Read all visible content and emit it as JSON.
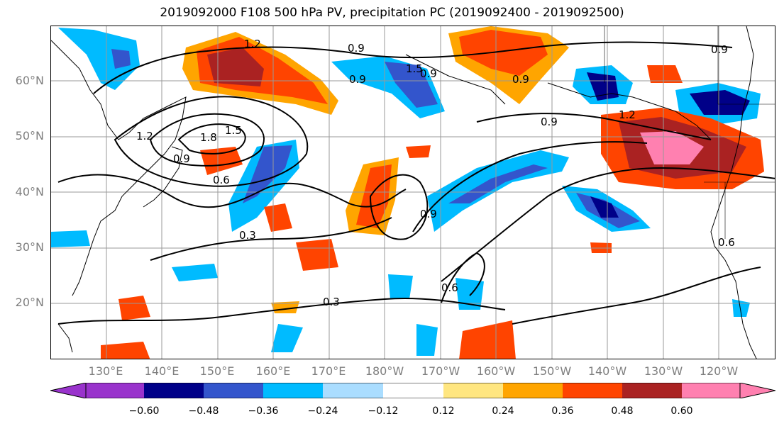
{
  "title": "2019092000 F108 500 hPa PV, precipitation PC (2019092400 - 2019092500)",
  "lat_labels": [
    "60°N",
    "50°N",
    "40°N",
    "30°N",
    "20°N"
  ],
  "lon_labels": [
    "130°E",
    "140°E",
    "150°E",
    "160°E",
    "170°E",
    "180°W",
    "170°W",
    "160°W",
    "150°W",
    "140°W",
    "130°W",
    "120°W"
  ],
  "colorbar": {
    "tick_labels": [
      "−0.60",
      "−0.48",
      "−0.36",
      "−0.24",
      "−0.12",
      "0.12",
      "0.24",
      "0.36",
      "0.48",
      "0.60"
    ],
    "colors": [
      "#9933cc",
      "#000088",
      "#3355cc",
      "#00bbff",
      "#aaddff",
      "#ffffff",
      "#ffe680",
      "#ffa500",
      "#ff4400",
      "#aa2222",
      "#ff80b0",
      "#ff80b0"
    ]
  },
  "contour_labels": [
    "1.2",
    "0.9",
    "0.9",
    "1.5",
    "0.9",
    "0.9",
    "1.2",
    "1.5",
    "1.8",
    "0.9",
    "0.6",
    "0.3",
    "0.9",
    "0.6",
    "0.3",
    "0.9",
    "1.2",
    "0.9",
    "0.6"
  ]
}
